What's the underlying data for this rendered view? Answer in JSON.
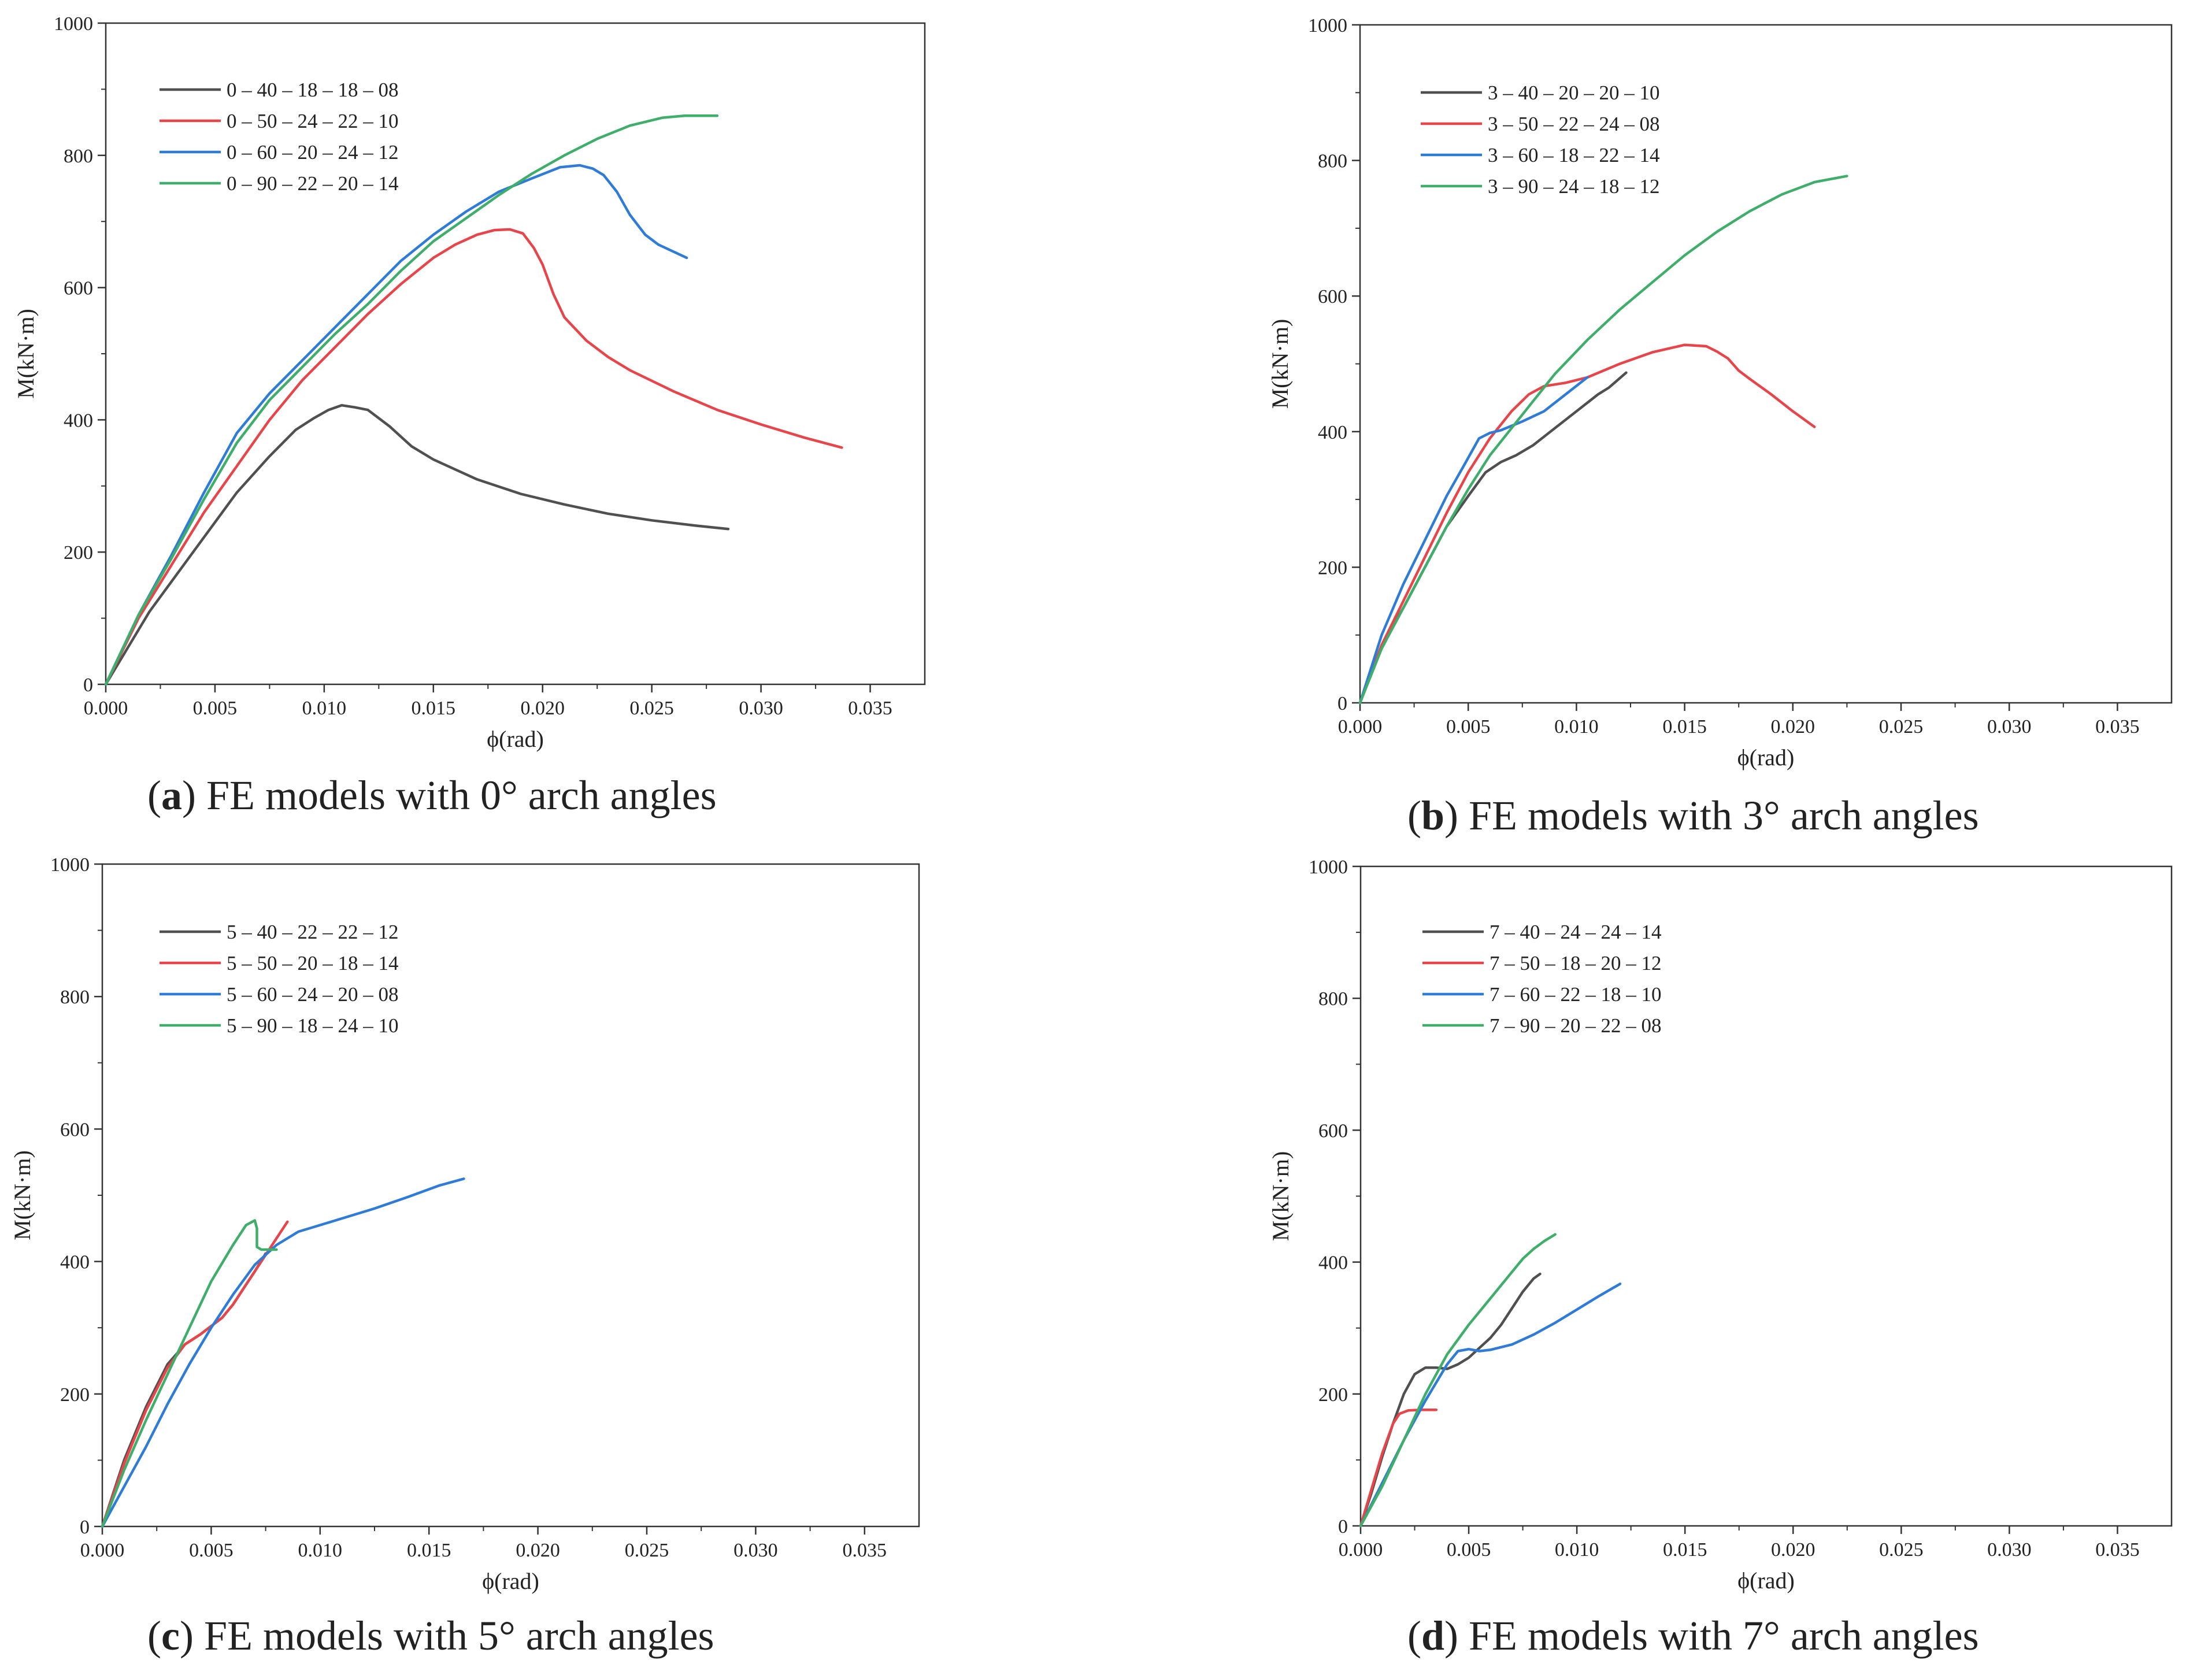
{
  "colors": {
    "black": "#505050",
    "red": "#e8454a",
    "blue": "#2f7bd8",
    "green": "#3fae6a",
    "axis": "#333333"
  },
  "chart_data": [
    {
      "id": "a",
      "type": "line",
      "xlabel": "ϕ(rad)",
      "ylabel": "M(kN·m)",
      "xlim": [
        0,
        0.0375
      ],
      "ylim": [
        0,
        1000
      ],
      "xticks": [
        "0.000",
        "0.005",
        "0.010",
        "0.015",
        "0.020",
        "0.025",
        "0.030",
        "0.035"
      ],
      "yticks": [
        "0",
        "200",
        "400",
        "600",
        "800",
        "1000"
      ],
      "caption": {
        "letter": "a",
        "text": "FE models with 0° arch angles"
      },
      "series": [
        {
          "name": "0 – 40 – 18 – 18 – 08",
          "color": "black",
          "x": [
            0,
            0.002,
            0.004,
            0.006,
            0.0075,
            0.0087,
            0.0095,
            0.0102,
            0.0108,
            0.0114,
            0.012,
            0.013,
            0.014,
            0.015,
            0.017,
            0.019,
            0.021,
            0.023,
            0.025,
            0.027,
            0.0285
          ],
          "y": [
            0,
            110,
            200,
            290,
            345,
            385,
            402,
            415,
            422,
            419,
            415,
            390,
            360,
            340,
            310,
            288,
            272,
            258,
            248,
            240,
            235
          ]
        },
        {
          "name": "0 – 50 – 24 – 22 – 10",
          "color": "red",
          "x": [
            0,
            0.0015,
            0.003,
            0.0045,
            0.006,
            0.0075,
            0.009,
            0.0105,
            0.012,
            0.0135,
            0.015,
            0.016,
            0.017,
            0.0178,
            0.0185,
            0.0191,
            0.0196,
            0.02,
            0.0205,
            0.021,
            0.022,
            0.023,
            0.024,
            0.026,
            0.028,
            0.03,
            0.032,
            0.0337
          ],
          "y": [
            0,
            100,
            180,
            260,
            330,
            400,
            460,
            510,
            560,
            605,
            645,
            665,
            680,
            687,
            688,
            682,
            660,
            635,
            590,
            555,
            520,
            495,
            475,
            443,
            415,
            393,
            373,
            358
          ]
        },
        {
          "name": "0 – 60 – 20 – 24 – 12",
          "color": "blue",
          "x": [
            0,
            0.0015,
            0.003,
            0.0045,
            0.006,
            0.0075,
            0.009,
            0.0105,
            0.012,
            0.0135,
            0.015,
            0.0165,
            0.018,
            0.0195,
            0.0208,
            0.0217,
            0.0223,
            0.0228,
            0.0234,
            0.024,
            0.0247,
            0.0253,
            0.0266
          ],
          "y": [
            0,
            105,
            195,
            290,
            380,
            440,
            490,
            540,
            590,
            640,
            680,
            715,
            745,
            765,
            782,
            785,
            780,
            770,
            745,
            710,
            680,
            665,
            645
          ]
        },
        {
          "name": "0 – 90 – 22 – 20 – 14",
          "color": "green",
          "x": [
            0,
            0.0015,
            0.003,
            0.0045,
            0.006,
            0.0075,
            0.009,
            0.0105,
            0.012,
            0.0135,
            0.015,
            0.0165,
            0.018,
            0.0195,
            0.021,
            0.0225,
            0.024,
            0.0255,
            0.0265,
            0.0272,
            0.028
          ],
          "y": [
            0,
            105,
            190,
            280,
            365,
            430,
            480,
            530,
            575,
            625,
            670,
            705,
            740,
            772,
            800,
            825,
            845,
            857,
            860,
            860,
            860
          ]
        }
      ]
    },
    {
      "id": "b",
      "type": "line",
      "xlabel": "ϕ(rad)",
      "ylabel": "M(kN·m)",
      "xlim": [
        0,
        0.0375
      ],
      "ylim": [
        0,
        1000
      ],
      "xticks": [
        "0.000",
        "0.005",
        "0.010",
        "0.015",
        "0.020",
        "0.025",
        "0.030",
        "0.035"
      ],
      "yticks": [
        "0",
        "200",
        "400",
        "600",
        "800",
        "1000"
      ],
      "caption": {
        "letter": "b",
        "text": "FE models with 3° arch angles"
      },
      "series": [
        {
          "name": "3 – 40 – 20 – 20 – 10",
          "color": "black",
          "x": [
            0,
            0.001,
            0.002,
            0.003,
            0.004,
            0.005,
            0.0058,
            0.0065,
            0.0072,
            0.008,
            0.009,
            0.01,
            0.011,
            0.0115,
            0.0123
          ],
          "y": [
            0,
            85,
            140,
            200,
            260,
            305,
            340,
            355,
            365,
            380,
            405,
            430,
            455,
            465,
            487
          ]
        },
        {
          "name": "3 – 50 – 22 – 24 – 08",
          "color": "red",
          "x": [
            0,
            0.001,
            0.002,
            0.003,
            0.004,
            0.005,
            0.006,
            0.007,
            0.0078,
            0.0085,
            0.0095,
            0.0105,
            0.012,
            0.0135,
            0.015,
            0.016,
            0.0165,
            0.017,
            0.0175,
            0.018,
            0.019,
            0.02,
            0.021
          ],
          "y": [
            0,
            85,
            150,
            215,
            280,
            340,
            390,
            430,
            455,
            467,
            472,
            480,
            500,
            517,
            528,
            526,
            518,
            508,
            490,
            478,
            455,
            430,
            407
          ]
        },
        {
          "name": "3 – 60 – 18 – 22 – 14",
          "color": "blue",
          "x": [
            0,
            0.001,
            0.002,
            0.003,
            0.004,
            0.0048,
            0.0055,
            0.006,
            0.0065,
            0.0075,
            0.0085,
            0.0095,
            0.0105
          ],
          "y": [
            0,
            100,
            175,
            240,
            305,
            350,
            390,
            398,
            402,
            415,
            430,
            455,
            480
          ]
        },
        {
          "name": "3 – 90 – 24 – 18 – 12",
          "color": "green",
          "x": [
            0,
            0.001,
            0.002,
            0.003,
            0.004,
            0.005,
            0.006,
            0.007,
            0.008,
            0.009,
            0.0105,
            0.012,
            0.0135,
            0.015,
            0.0165,
            0.018,
            0.0195,
            0.021,
            0.0225
          ],
          "y": [
            0,
            80,
            140,
            200,
            260,
            315,
            365,
            405,
            445,
            485,
            535,
            580,
            620,
            660,
            695,
            725,
            750,
            768,
            777
          ]
        }
      ]
    },
    {
      "id": "c",
      "type": "line",
      "xlabel": "ϕ(rad)",
      "ylabel": "M(kN·m)",
      "xlim": [
        0,
        0.0375
      ],
      "ylim": [
        0,
        1000
      ],
      "xticks": [
        "0.000",
        "0.005",
        "0.010",
        "0.015",
        "0.020",
        "0.025",
        "0.030",
        "0.035"
      ],
      "yticks": [
        "0",
        "200",
        "400",
        "600",
        "800",
        "1000"
      ],
      "caption": {
        "letter": "c",
        "text": "FE models with 5° arch angles"
      },
      "series": [
        {
          "name": "5 – 40 – 22 – 22 – 12",
          "color": "black",
          "x": [
            0,
            0.001,
            0.002,
            0.003,
            0.0038,
            0.0045,
            0.0055,
            0.006,
            0.0065,
            0.007,
            0.0075
          ],
          "y": [
            0,
            100,
            180,
            245,
            275,
            290,
            315,
            335,
            360,
            385,
            412
          ]
        },
        {
          "name": "5 – 50 – 20 – 18 – 14",
          "color": "red",
          "x": [
            0,
            0.001,
            0.002,
            0.003,
            0.0038,
            0.0045,
            0.0055,
            0.006,
            0.0065,
            0.007,
            0.0075,
            0.008,
            0.0085
          ],
          "y": [
            0,
            95,
            175,
            240,
            275,
            290,
            315,
            335,
            360,
            385,
            410,
            435,
            460
          ]
        },
        {
          "name": "5 – 60 – 24 – 20 – 08",
          "color": "blue",
          "x": [
            0,
            0.001,
            0.002,
            0.003,
            0.004,
            0.005,
            0.006,
            0.007,
            0.0075,
            0.008,
            0.009,
            0.01,
            0.011,
            0.0125,
            0.014,
            0.0155,
            0.0166
          ],
          "y": [
            0,
            60,
            120,
            185,
            245,
            300,
            350,
            395,
            410,
            425,
            445,
            455,
            465,
            480,
            497,
            515,
            525
          ]
        },
        {
          "name": "5 – 90 – 18 – 24 – 10",
          "color": "green",
          "x": [
            0,
            0.001,
            0.002,
            0.003,
            0.004,
            0.005,
            0.006,
            0.0066,
            0.007,
            0.0071,
            0.0071,
            0.0073,
            0.0077,
            0.008
          ],
          "y": [
            0,
            85,
            160,
            230,
            300,
            370,
            425,
            455,
            462,
            450,
            422,
            418,
            418,
            418
          ]
        }
      ]
    },
    {
      "id": "d",
      "type": "line",
      "xlabel": "ϕ(rad)",
      "ylabel": "M(kN·m)",
      "xlim": [
        0,
        0.0375
      ],
      "ylim": [
        0,
        1000
      ],
      "xticks": [
        "0.000",
        "0.005",
        "0.010",
        "0.015",
        "0.020",
        "0.025",
        "0.030",
        "0.035"
      ],
      "yticks": [
        "0",
        "200",
        "400",
        "600",
        "800",
        "1000"
      ],
      "caption": {
        "letter": "d",
        "text": "FE models with 7° arch angles"
      },
      "series": [
        {
          "name": "7 – 40 – 24 – 24 – 14",
          "color": "black",
          "x": [
            0,
            0.0005,
            0.001,
            0.0015,
            0.002,
            0.0025,
            0.003,
            0.0035,
            0.004,
            0.0045,
            0.005,
            0.0055,
            0.006,
            0.0065,
            0.007,
            0.0075,
            0.008,
            0.0083
          ],
          "y": [
            0,
            50,
            105,
            155,
            200,
            230,
            240,
            240,
            238,
            245,
            255,
            270,
            285,
            305,
            330,
            355,
            375,
            382
          ]
        },
        {
          "name": "7 – 50 – 18 – 20 – 12",
          "color": "red",
          "x": [
            0,
            0.0005,
            0.001,
            0.0015,
            0.0018,
            0.0022,
            0.0028,
            0.0035
          ],
          "y": [
            0,
            55,
            110,
            155,
            170,
            175,
            176,
            176
          ]
        },
        {
          "name": "7 – 60 – 22 – 18 – 10",
          "color": "blue",
          "x": [
            0,
            0.001,
            0.002,
            0.003,
            0.004,
            0.0045,
            0.005,
            0.0055,
            0.006,
            0.007,
            0.008,
            0.009,
            0.01,
            0.011,
            0.012
          ],
          "y": [
            0,
            65,
            130,
            190,
            245,
            265,
            268,
            265,
            267,
            275,
            290,
            308,
            328,
            348,
            367
          ]
        },
        {
          "name": "7 – 90 – 20 – 22 – 08",
          "color": "green",
          "x": [
            0,
            0.001,
            0.002,
            0.003,
            0.004,
            0.005,
            0.006,
            0.007,
            0.0075,
            0.008,
            0.0085,
            0.009
          ],
          "y": [
            0,
            60,
            130,
            200,
            260,
            305,
            345,
            385,
            405,
            420,
            432,
            442
          ]
        }
      ]
    }
  ]
}
